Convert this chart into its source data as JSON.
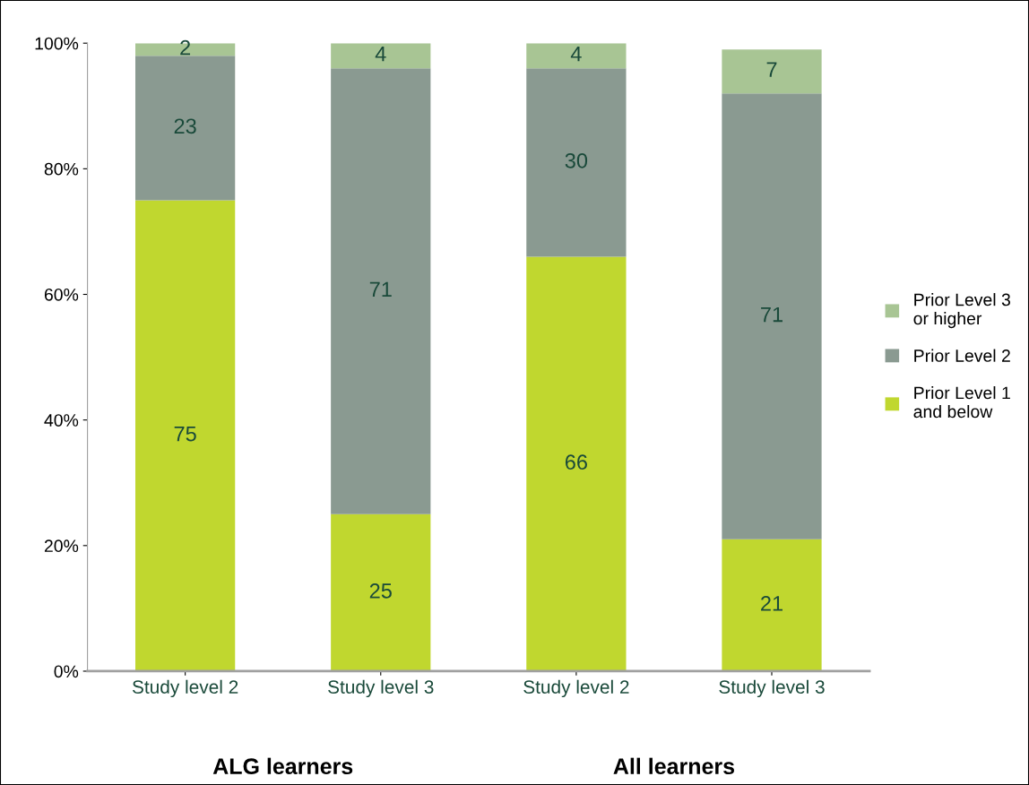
{
  "chart_data": {
    "type": "bar",
    "stacked": true,
    "categories": [
      "Study level 2",
      "Study level 3",
      "Study level 2",
      "Study level 3"
    ],
    "series": [
      {
        "name": "Prior Level 1\nand below",
        "color": "#c0d72f",
        "values": [
          75,
          25,
          66,
          21
        ]
      },
      {
        "name": "Prior Level 2",
        "color": "#8a9a91",
        "values": [
          23,
          71,
          30,
          71
        ]
      },
      {
        "name": "Prior Level 3\nor higher",
        "color": "#a8c594",
        "values": [
          2,
          4,
          4,
          7
        ]
      }
    ],
    "ylim": [
      0,
      100
    ],
    "yticks": [
      {
        "value": 0,
        "label": "0%"
      },
      {
        "value": 20,
        "label": "20%"
      },
      {
        "value": 40,
        "label": "40%"
      },
      {
        "value": 60,
        "label": "60%"
      },
      {
        "value": 80,
        "label": "80%"
      },
      {
        "value": 100,
        "label": "100%"
      }
    ],
    "data_labels": true,
    "grid": false,
    "legend": "right",
    "annotations": [
      "ALG learners",
      "All learners"
    ]
  }
}
